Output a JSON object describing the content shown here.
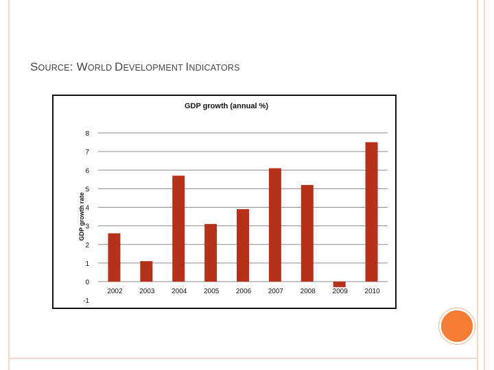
{
  "slide": {
    "heading_parts": [
      "S",
      "OURCE",
      ": ",
      "W",
      "ORLD",
      " ",
      "D",
      "EVELOPMENT",
      " ",
      "I",
      "NDICATORS"
    ]
  },
  "colors": {
    "bar": "#b5311a",
    "frame": "#f6d6c8",
    "accent_circle": "#f47c35"
  },
  "chart_data": {
    "type": "bar",
    "title": "GDP growth (annual %)",
    "xlabel": "",
    "ylabel": "GDP growth rate",
    "categories": [
      "2002",
      "2003",
      "2004",
      "2005",
      "2006",
      "2007",
      "2008",
      "2009",
      "2010"
    ],
    "values": [
      2.6,
      1.1,
      5.7,
      3.1,
      3.9,
      6.1,
      5.2,
      -0.3,
      7.5
    ],
    "ylim": [
      -1,
      8
    ],
    "yticks": [
      8,
      7,
      6,
      5,
      4,
      3,
      2,
      1,
      0,
      -1
    ],
    "grid": true
  }
}
